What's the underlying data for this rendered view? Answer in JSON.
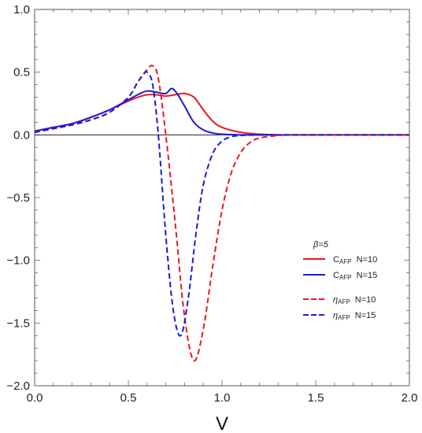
{
  "chart_data": {
    "type": "line",
    "xlabel": "V",
    "ylabel": "",
    "xlim": [
      0,
      2
    ],
    "ylim": [
      -2,
      1
    ],
    "x_ticks": [
      "0.0",
      "0.5",
      "1.0",
      "1.5",
      "2.0"
    ],
    "y_ticks": [
      "1.0",
      "0.5",
      "0.0",
      "-0.5",
      "-1.0",
      "-1.5",
      "-2.0"
    ],
    "grid": false,
    "zero_line": true,
    "legend": {
      "placement": "center-right",
      "header": "β=5",
      "entries": [
        {
          "symbol": "C",
          "sub": "AFP",
          "suffix": "N=10",
          "color": "#e8191e",
          "dash": "solid"
        },
        {
          "symbol": "C",
          "sub": "AFP",
          "suffix": "N=15",
          "color": "#1a1ad6",
          "dash": "solid"
        },
        {
          "symbol": "η",
          "sub": "AFP",
          "suffix": "N=10",
          "color": "#e8191e",
          "dash": "dashed"
        },
        {
          "symbol": "η",
          "sub": "AFP",
          "suffix": "N=15",
          "color": "#1a1ad6",
          "dash": "dashed"
        }
      ]
    },
    "series": [
      {
        "color": "#e8191e",
        "dash": "solid",
        "x": [
          0,
          0.1,
          0.2,
          0.3,
          0.4,
          0.5,
          0.55,
          0.6,
          0.65,
          0.7,
          0.75,
          0.8,
          0.85,
          0.9,
          0.95,
          1.0,
          1.1,
          1.2,
          1.3,
          1.5,
          2.0
        ],
        "y": [
          0.03,
          0.06,
          0.09,
          0.14,
          0.2,
          0.27,
          0.3,
          0.32,
          0.32,
          0.31,
          0.32,
          0.33,
          0.3,
          0.2,
          0.11,
          0.06,
          0.02,
          0.005,
          0.0,
          0.0,
          0.0
        ]
      },
      {
        "color": "#1a1ad6",
        "dash": "solid",
        "x": [
          0,
          0.1,
          0.2,
          0.3,
          0.4,
          0.5,
          0.55,
          0.6,
          0.65,
          0.7,
          0.73,
          0.76,
          0.8,
          0.85,
          0.9,
          0.95,
          1.0,
          1.1,
          1.3,
          1.5,
          2.0
        ],
        "y": [
          0.03,
          0.06,
          0.09,
          0.14,
          0.2,
          0.28,
          0.32,
          0.35,
          0.34,
          0.33,
          0.37,
          0.33,
          0.23,
          0.1,
          0.04,
          0.015,
          0.005,
          0.0,
          0.0,
          0.0,
          0.0
        ]
      },
      {
        "color": "#e8191e",
        "dash": "dashed",
        "x": [
          0,
          0.1,
          0.2,
          0.3,
          0.4,
          0.5,
          0.55,
          0.6,
          0.63,
          0.66,
          0.7,
          0.75,
          0.8,
          0.85,
          0.9,
          0.95,
          1.0,
          1.05,
          1.1,
          1.15,
          1.2,
          1.3,
          1.4,
          1.5,
          2.0
        ],
        "y": [
          0.02,
          0.05,
          0.08,
          0.12,
          0.18,
          0.3,
          0.42,
          0.52,
          0.55,
          0.45,
          0.0,
          -0.7,
          -1.45,
          -1.8,
          -1.55,
          -1.05,
          -0.6,
          -0.3,
          -0.14,
          -0.06,
          -0.025,
          -0.005,
          0.0,
          0.0,
          0.0
        ]
      },
      {
        "color": "#1a1ad6",
        "dash": "dashed",
        "x": [
          0,
          0.1,
          0.2,
          0.3,
          0.4,
          0.5,
          0.55,
          0.58,
          0.6,
          0.63,
          0.66,
          0.7,
          0.74,
          0.78,
          0.82,
          0.86,
          0.9,
          0.95,
          1.0,
          1.05,
          1.1,
          1.2,
          1.3,
          1.5,
          2.0
        ],
        "y": [
          0.02,
          0.05,
          0.08,
          0.12,
          0.18,
          0.3,
          0.42,
          0.48,
          0.5,
          0.4,
          0.0,
          -0.8,
          -1.4,
          -1.6,
          -1.3,
          -0.8,
          -0.4,
          -0.15,
          -0.05,
          -0.015,
          -0.005,
          0.0,
          0.0,
          0.0,
          0.0
        ]
      }
    ]
  }
}
